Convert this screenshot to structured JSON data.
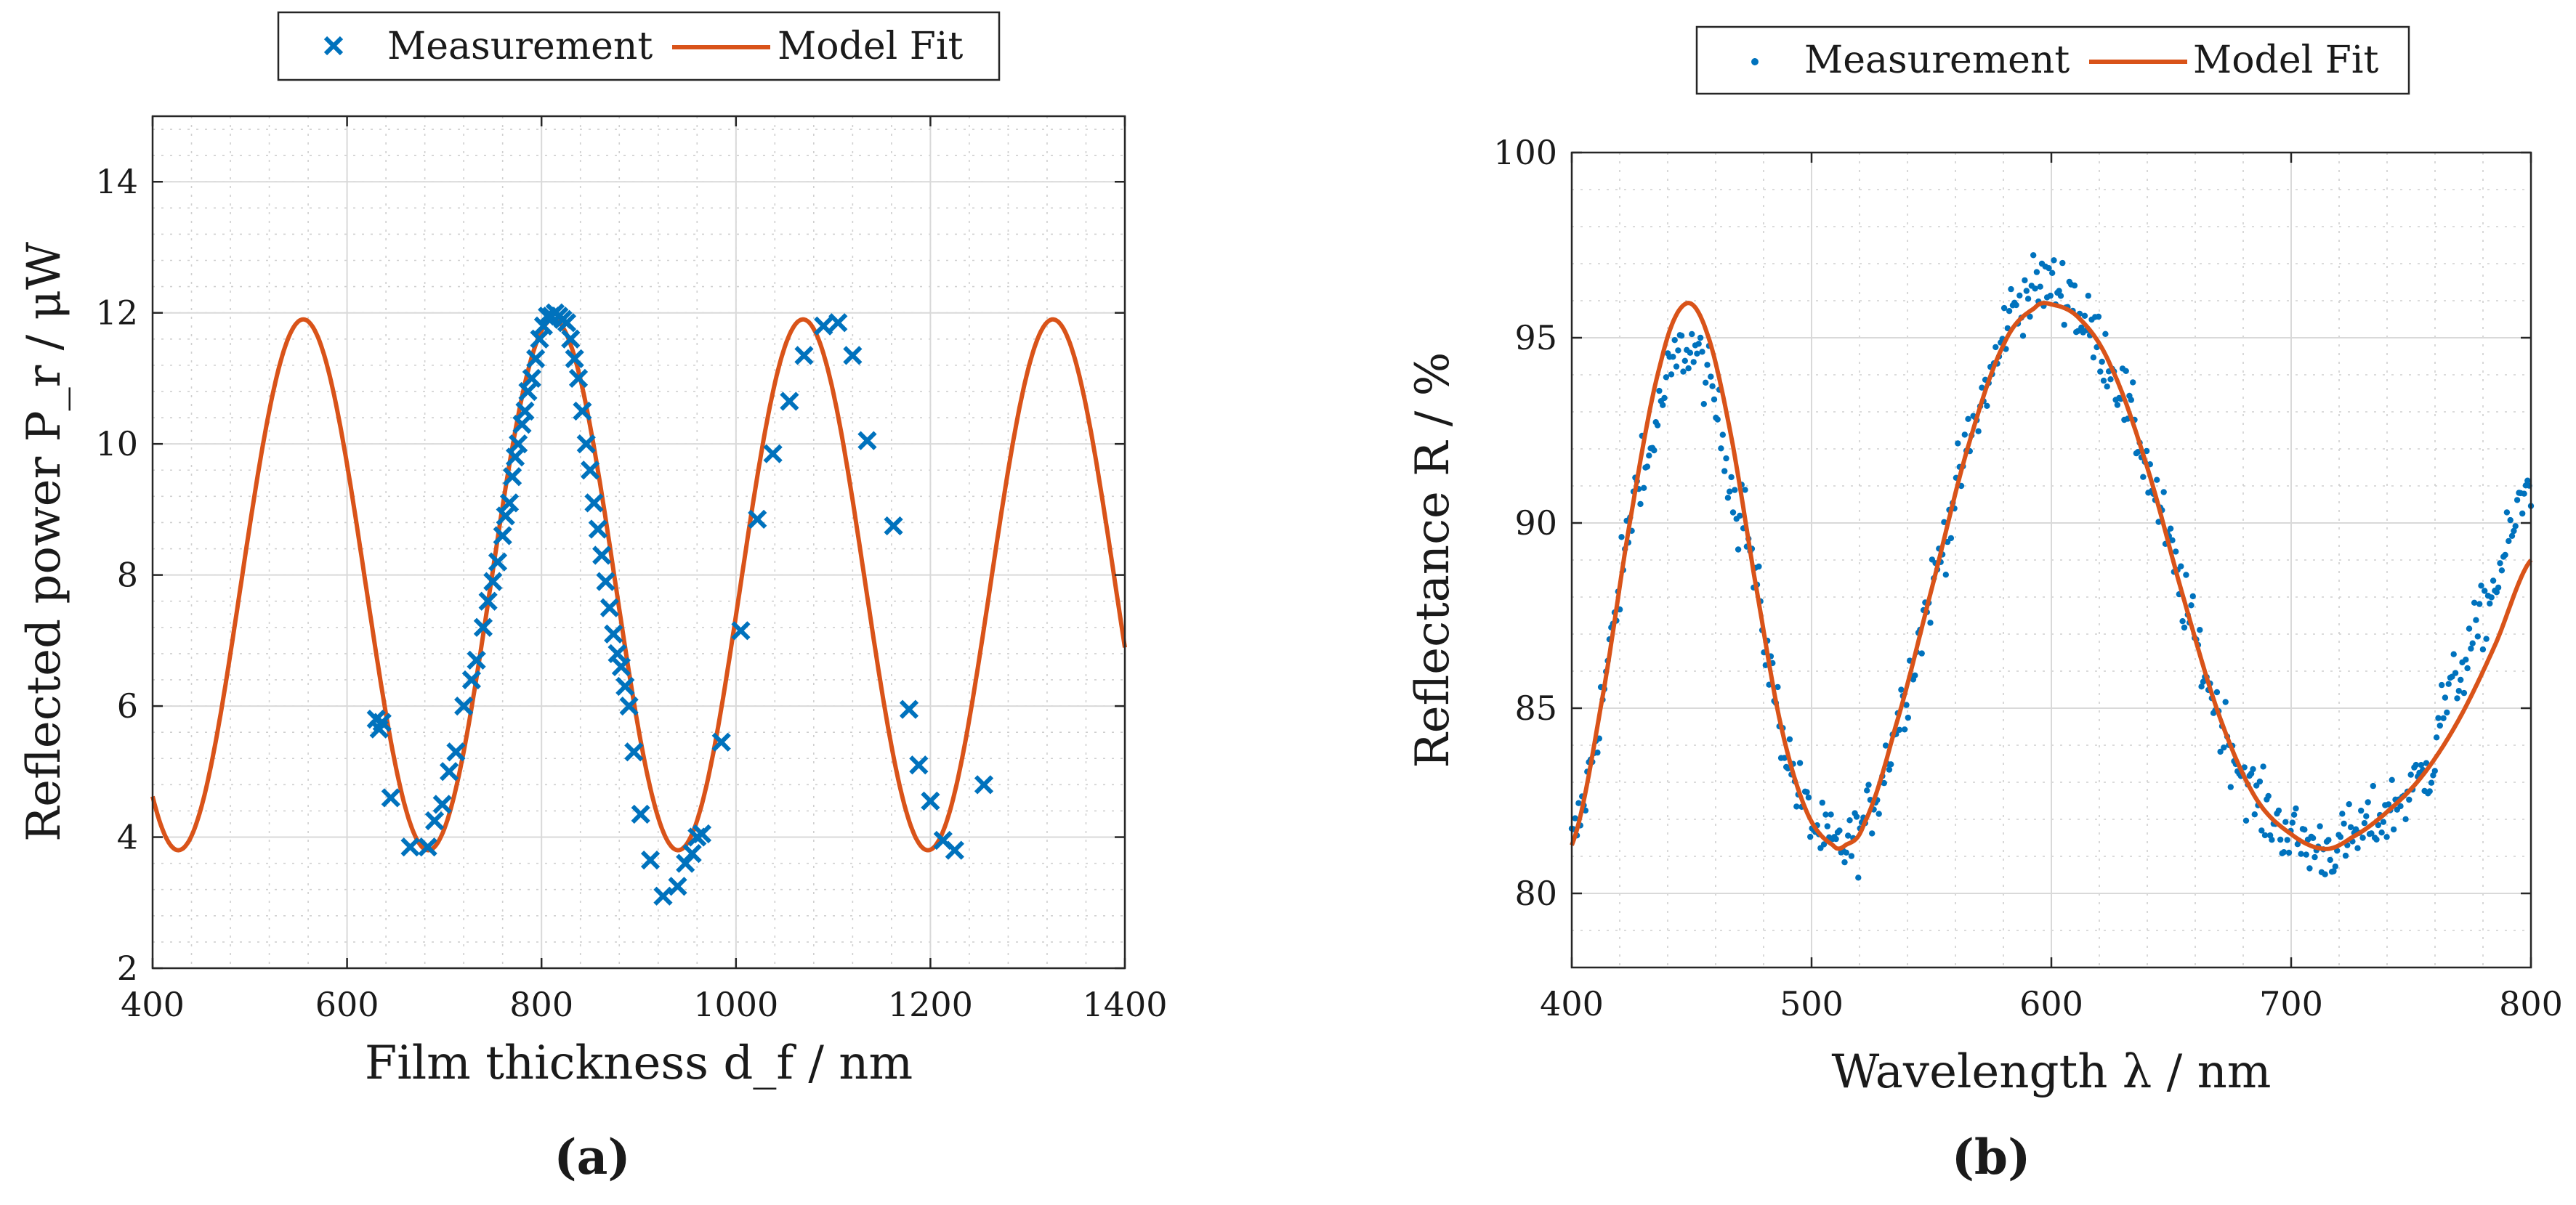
{
  "chart_data": [
    {
      "id": "a",
      "type": "scatter+line",
      "panel_label": "(a)",
      "xlabel": "Film thickness d_f / nm",
      "ylabel": "Reflected power P_r / μW",
      "xlim": [
        400,
        1400
      ],
      "ylim": [
        2,
        15
      ],
      "xticks": [
        400,
        600,
        800,
        1000,
        1200,
        1400
      ],
      "yticks": [
        2,
        4,
        6,
        8,
        10,
        12,
        14
      ],
      "grid": true,
      "legend": {
        "position": "top-outside",
        "entries": [
          "Measurement",
          "Model Fit"
        ]
      },
      "series": [
        {
          "name": "Measurement",
          "marker": "x",
          "color": "#0072bd",
          "x": [
            630,
            633,
            636,
            645,
            665,
            683,
            690,
            698,
            705,
            712,
            720,
            728,
            733,
            740,
            745,
            750,
            755,
            760,
            763,
            767,
            770,
            773,
            776,
            780,
            783,
            786,
            790,
            794,
            798,
            802,
            806,
            810,
            814,
            818,
            822,
            826,
            830,
            834,
            838,
            842,
            846,
            850,
            854,
            858,
            862,
            866,
            870,
            874,
            878,
            882,
            886,
            890,
            895,
            902,
            912,
            925,
            940,
            948,
            955,
            960,
            965,
            985,
            1005,
            1022,
            1038,
            1055,
            1070,
            1090,
            1105,
            1120,
            1135,
            1162,
            1178,
            1188,
            1200,
            1213,
            1225,
            1255
          ],
          "y": [
            5.8,
            5.65,
            5.75,
            4.6,
            3.85,
            3.85,
            4.25,
            4.5,
            5.0,
            5.3,
            6.0,
            6.4,
            6.7,
            7.2,
            7.6,
            7.9,
            8.2,
            8.6,
            8.9,
            9.1,
            9.5,
            9.8,
            10.0,
            10.3,
            10.5,
            10.8,
            11.0,
            11.3,
            11.6,
            11.8,
            11.95,
            11.95,
            12.0,
            11.95,
            11.9,
            11.85,
            11.6,
            11.3,
            11.0,
            10.5,
            10.0,
            9.6,
            9.1,
            8.7,
            8.3,
            7.9,
            7.5,
            7.1,
            6.8,
            6.6,
            6.3,
            6.0,
            5.3,
            4.35,
            3.65,
            3.1,
            3.25,
            3.6,
            3.75,
            4.0,
            4.05,
            5.45,
            7.15,
            8.85,
            9.85,
            10.65,
            11.35,
            11.8,
            11.85,
            11.35,
            10.05,
            8.75,
            5.95,
            5.1,
            4.55,
            3.95,
            3.8,
            4.8
          ]
        },
        {
          "name": "Model Fit",
          "color": "#d95319",
          "model": {
            "form": "offset + amplitude*cos(2*pi*(x - x_peak)/period)",
            "offset": 7.85,
            "amplitude": 4.05,
            "x_peak": 812,
            "period": 257
          }
        }
      ]
    },
    {
      "id": "b",
      "type": "scatter+line",
      "panel_label": "(b)",
      "xlabel": "Wavelength λ / nm",
      "ylabel": "Reflectance R / %",
      "xlim": [
        400,
        800
      ],
      "ylim": [
        78,
        100
      ],
      "xticks": [
        400,
        500,
        600,
        700,
        800
      ],
      "yticks": [
        80,
        85,
        90,
        95,
        100
      ],
      "grid": true,
      "legend": {
        "position": "top-outside",
        "entries": [
          "Measurement",
          "Model Fit"
        ]
      },
      "series": [
        {
          "name": "Measurement",
          "marker": "dot",
          "color": "#0072bd",
          "n_points": 560,
          "x_range": [
            400,
            800
          ]
        },
        {
          "name": "Model Fit",
          "color": "#d95319",
          "x": [
            400,
            412,
            425,
            437,
            447,
            456,
            466,
            476,
            487,
            498,
            509,
            514,
            522,
            535,
            550,
            565,
            580,
            593,
            600,
            612,
            625,
            640,
            655,
            670,
            685,
            700,
            714,
            725,
            740,
            755,
            770,
            785,
            800
          ],
          "y": [
            81.3,
            85.0,
            90.3,
            94.3,
            95.9,
            95.2,
            92.5,
            88.6,
            84.6,
            82.2,
            81.3,
            81.3,
            81.9,
            84.5,
            88.2,
            92.0,
            94.8,
            95.8,
            95.9,
            95.5,
            94.2,
            91.5,
            88.0,
            84.8,
            82.6,
            81.6,
            81.2,
            81.5,
            82.2,
            83.2,
            84.7,
            86.7,
            89.0
          ]
        }
      ]
    }
  ]
}
